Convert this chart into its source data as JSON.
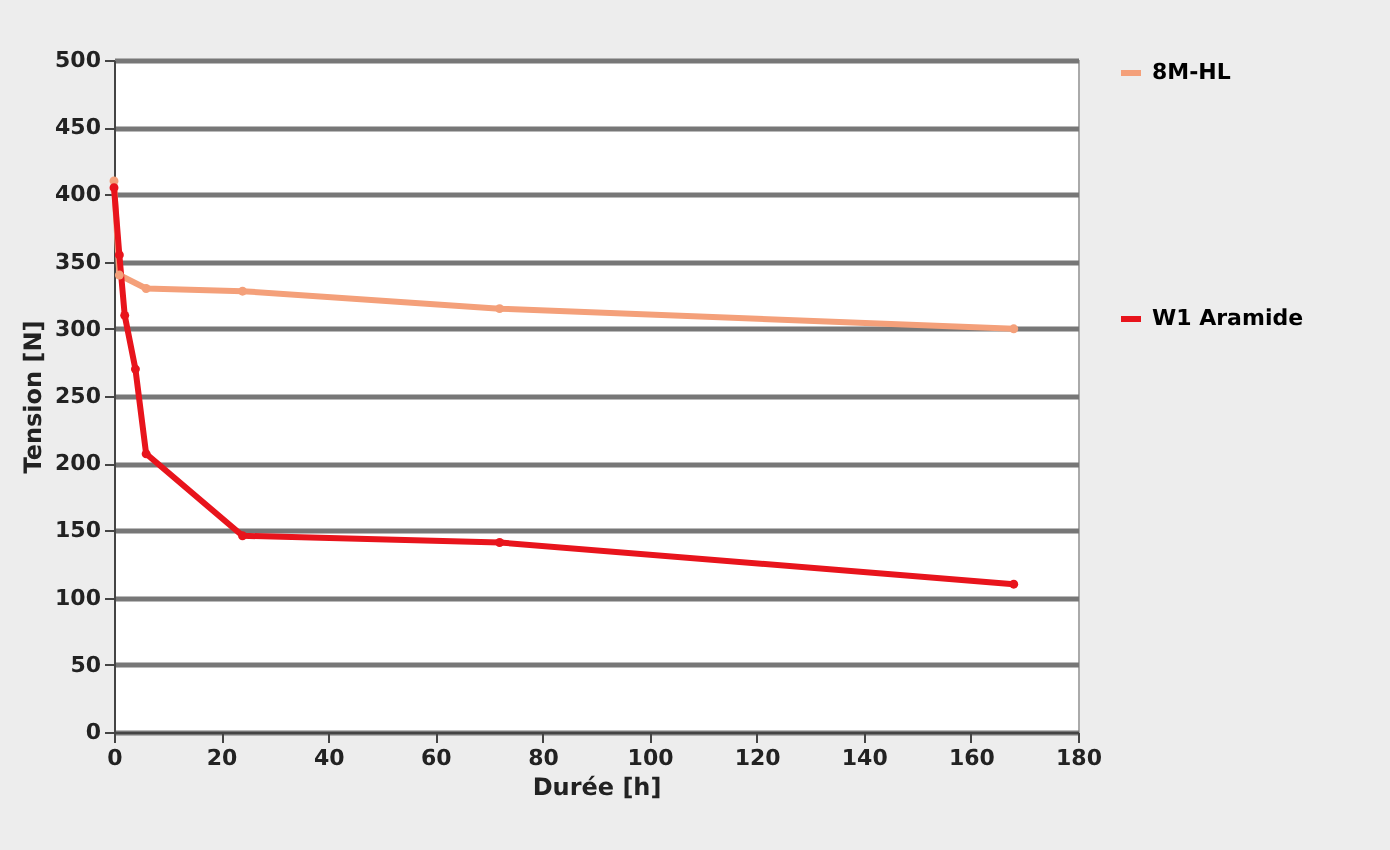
{
  "chart_data": {
    "type": "line",
    "xlabel": "Durée [h]",
    "ylabel": "Tension [N]",
    "series": [
      {
        "name": "8M-HL",
        "color": "#f4a07a",
        "x": [
          0,
          1,
          6,
          24,
          72,
          168
        ],
        "values": [
          410,
          340,
          330,
          328,
          315,
          300
        ]
      },
      {
        "name": "W1 Aramide",
        "color": "#e8141c",
        "x": [
          0,
          1,
          2,
          4,
          6,
          24,
          72,
          168
        ],
        "values": [
          405,
          355,
          310,
          270,
          207,
          146,
          141,
          110
        ]
      }
    ],
    "xlim": [
      0,
      180
    ],
    "xticks": [
      0,
      20,
      40,
      60,
      80,
      100,
      120,
      140,
      160,
      180
    ],
    "ylim": [
      0,
      500
    ],
    "yticks": [
      0,
      50,
      100,
      150,
      200,
      250,
      300,
      350,
      400,
      450,
      500
    ],
    "grid": "y",
    "legend": "right",
    "marker": "circle"
  }
}
